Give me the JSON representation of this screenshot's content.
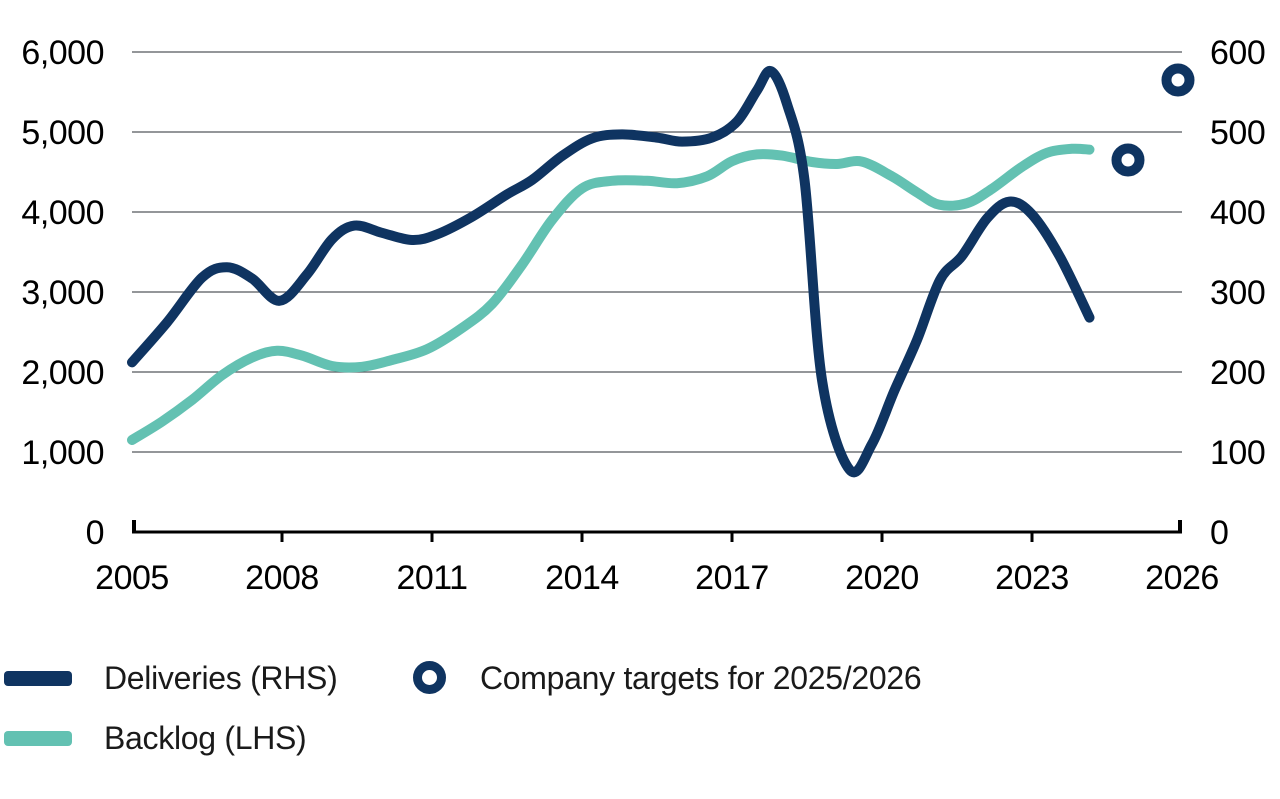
{
  "legend": {
    "deliveries_label": "Deliveries (RHS)",
    "backlog_label": "Backlog (LHS)",
    "targets_label": "Company targets for 2025/2026"
  },
  "colors": {
    "deliveries": "#0F3461",
    "backlog": "#63C1B2",
    "grid": "#55575C",
    "axis": "#000000",
    "text": "#000000"
  },
  "chart_data": {
    "type": "line",
    "title": "",
    "grid": true,
    "legend_position": "bottom-left",
    "x_axis": {
      "min": 2005,
      "max": 2026,
      "tick_years": [
        2005,
        2008,
        2011,
        2014,
        2017,
        2020,
        2023,
        2026
      ],
      "tick_labels": [
        "2005",
        "2008",
        "2011",
        "2014",
        "2017",
        "2020",
        "2023",
        "2026"
      ]
    },
    "left_axis": {
      "series": "Backlog",
      "min": 0,
      "max": 6000,
      "step": 1000,
      "tick_labels": [
        "0",
        "1,000",
        "2,000",
        "3,000",
        "4,000",
        "5,000",
        "6,000"
      ]
    },
    "right_axis": {
      "series": "Deliveries",
      "min": 0,
      "max": 600,
      "step": 100,
      "tick_labels": [
        "0",
        "100",
        "200",
        "300",
        "400",
        "500",
        "600"
      ]
    },
    "series": [
      {
        "name": "Deliveries (RHS)",
        "axis": "right",
        "color": "#0F3461",
        "points": [
          [
            2005.0,
            212
          ],
          [
            2005.7,
            262
          ],
          [
            2006.4,
            318
          ],
          [
            2006.9,
            331
          ],
          [
            2007.4,
            317
          ],
          [
            2007.95,
            289
          ],
          [
            2008.5,
            322
          ],
          [
            2009.0,
            366
          ],
          [
            2009.45,
            383
          ],
          [
            2010.0,
            374
          ],
          [
            2010.6,
            365
          ],
          [
            2011.1,
            372
          ],
          [
            2011.8,
            394
          ],
          [
            2012.5,
            422
          ],
          [
            2013.0,
            440
          ],
          [
            2013.6,
            470
          ],
          [
            2014.2,
            492
          ],
          [
            2014.8,
            497
          ],
          [
            2015.5,
            493
          ],
          [
            2016.0,
            488
          ],
          [
            2016.6,
            493
          ],
          [
            2017.1,
            513
          ],
          [
            2017.5,
            552
          ],
          [
            2017.78,
            576
          ],
          [
            2018.1,
            535
          ],
          [
            2018.45,
            440
          ],
          [
            2018.8,
            190
          ],
          [
            2019.35,
            78
          ],
          [
            2019.8,
            110
          ],
          [
            2020.25,
            177
          ],
          [
            2020.7,
            240
          ],
          [
            2021.16,
            315
          ],
          [
            2021.6,
            345
          ],
          [
            2022.1,
            392
          ],
          [
            2022.55,
            413
          ],
          [
            2023.0,
            397
          ],
          [
            2023.55,
            345
          ],
          [
            2024.15,
            268
          ]
        ]
      },
      {
        "name": "Backlog (LHS)",
        "axis": "left",
        "color": "#63C1B2",
        "points": [
          [
            2005.0,
            1150
          ],
          [
            2005.6,
            1380
          ],
          [
            2006.2,
            1650
          ],
          [
            2006.8,
            1960
          ],
          [
            2007.4,
            2180
          ],
          [
            2007.9,
            2265
          ],
          [
            2008.4,
            2205
          ],
          [
            2009.0,
            2075
          ],
          [
            2009.6,
            2065
          ],
          [
            2010.2,
            2150
          ],
          [
            2010.9,
            2285
          ],
          [
            2011.6,
            2550
          ],
          [
            2012.2,
            2850
          ],
          [
            2012.8,
            3340
          ],
          [
            2013.4,
            3900
          ],
          [
            2014.0,
            4295
          ],
          [
            2014.6,
            4390
          ],
          [
            2015.3,
            4390
          ],
          [
            2015.9,
            4360
          ],
          [
            2016.5,
            4445
          ],
          [
            2017.0,
            4635
          ],
          [
            2017.5,
            4720
          ],
          [
            2018.0,
            4705
          ],
          [
            2018.6,
            4625
          ],
          [
            2019.1,
            4600
          ],
          [
            2019.6,
            4630
          ],
          [
            2020.2,
            4445
          ],
          [
            2020.7,
            4245
          ],
          [
            2021.15,
            4090
          ],
          [
            2021.7,
            4110
          ],
          [
            2022.2,
            4290
          ],
          [
            2022.8,
            4565
          ],
          [
            2023.3,
            4740
          ],
          [
            2023.8,
            4790
          ],
          [
            2024.15,
            4780
          ]
        ]
      }
    ],
    "markers": [
      {
        "name": "Company targets for 2025/2026",
        "axis": "right",
        "color": "#0F3461",
        "points": [
          [
            2025,
            465
          ],
          [
            2026,
            565
          ]
        ]
      }
    ]
  }
}
